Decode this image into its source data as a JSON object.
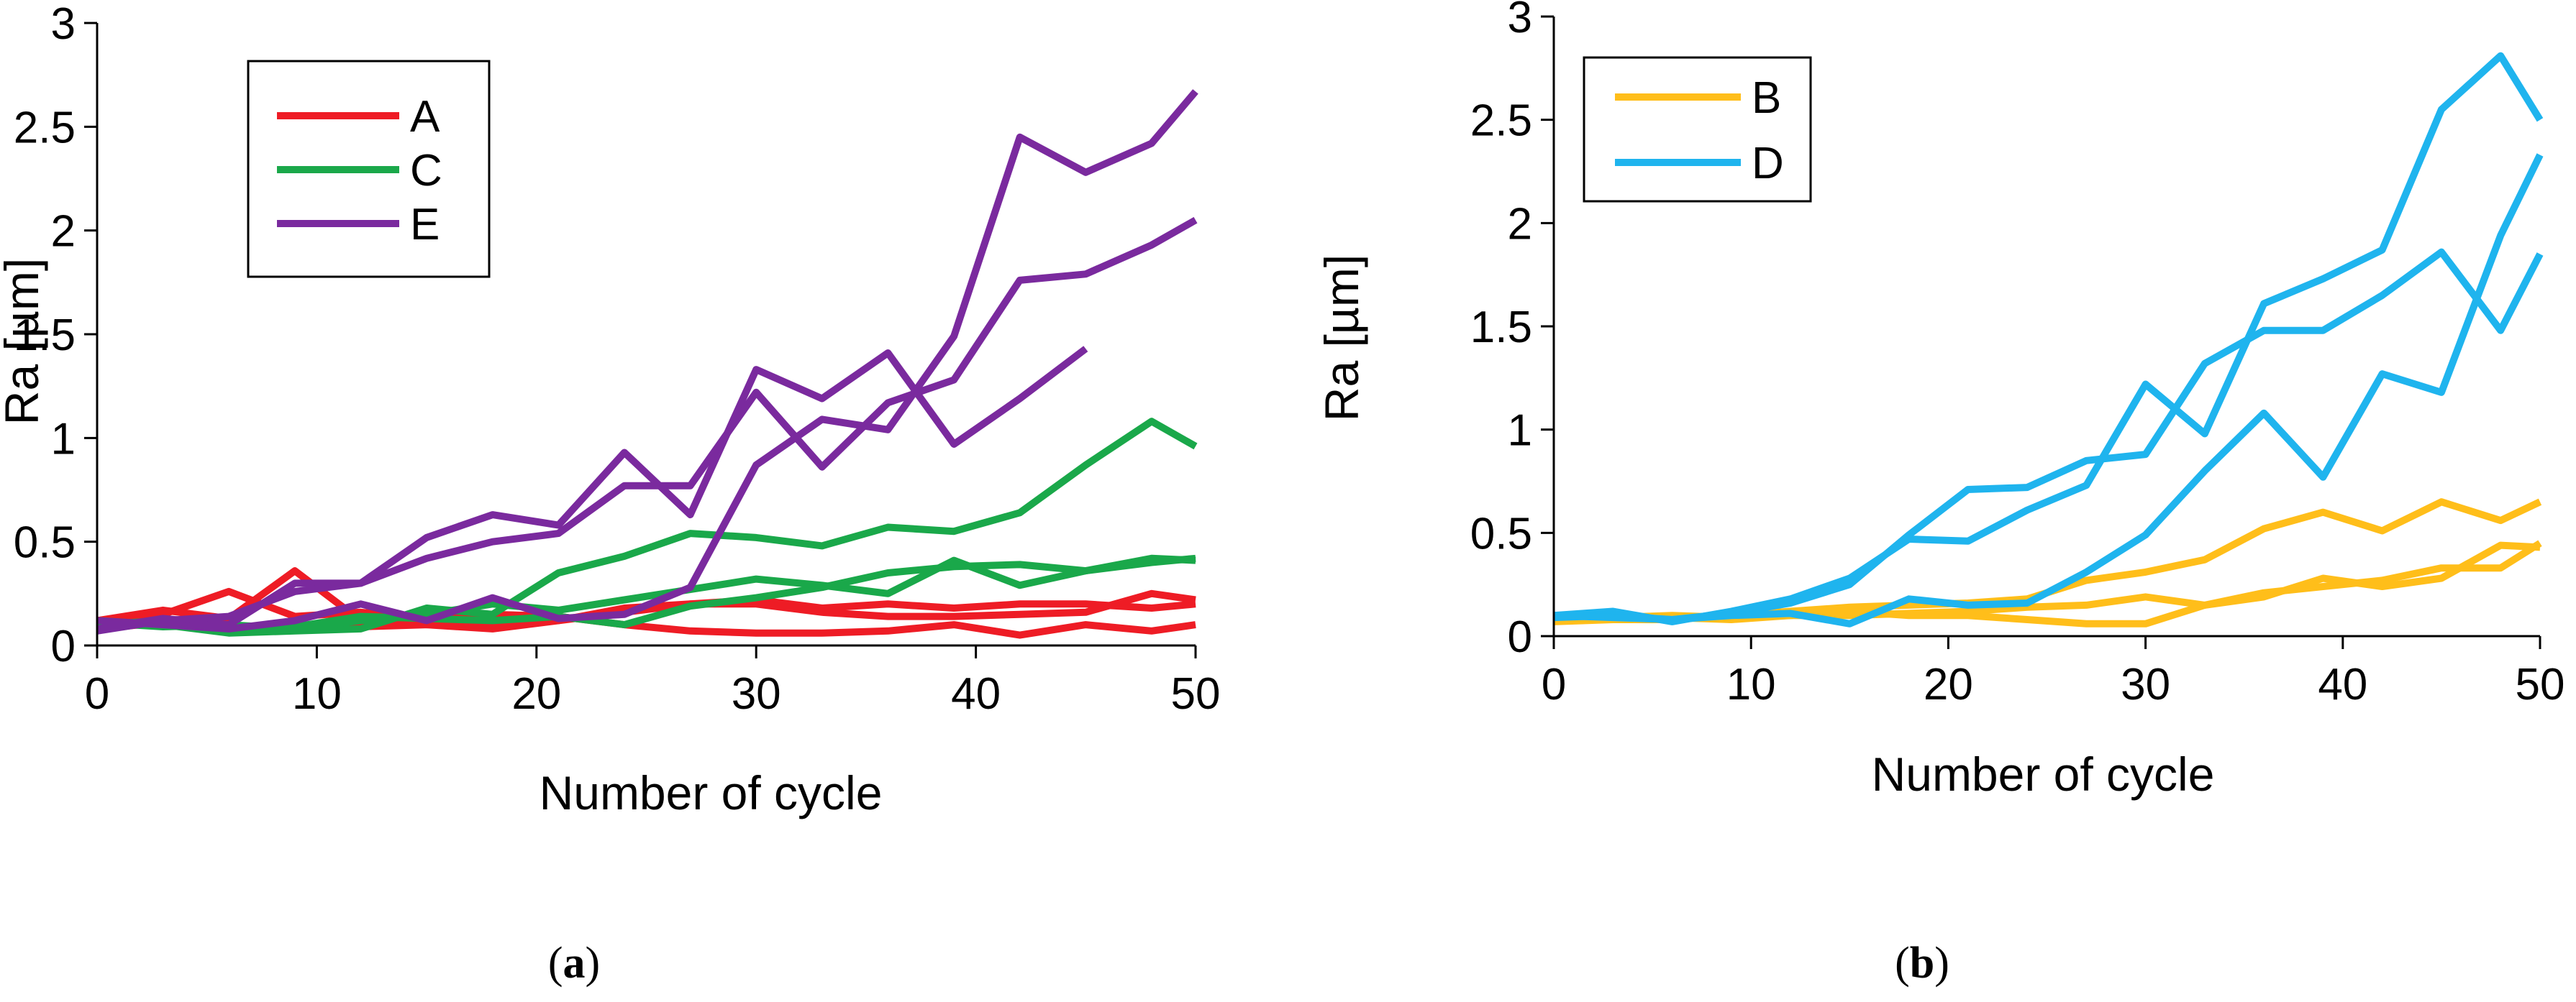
{
  "chart_data": [
    {
      "type": "line",
      "panel": "a",
      "caption_open": "(",
      "caption_letter": "a",
      "caption_close": ")",
      "xlabel": "Number of cycle",
      "ylabel": "Ra [µm]",
      "xlim": [
        0,
        50
      ],
      "ylim": [
        0,
        3
      ],
      "xticks": [
        0,
        10,
        20,
        30,
        40,
        50
      ],
      "yticks": [
        0,
        0.5,
        1,
        1.5,
        2,
        2.5,
        3
      ],
      "ytick_labels": [
        "0",
        "0.5",
        "1",
        "1.5",
        "2",
        "2.5",
        "3"
      ],
      "legend": [
        "A",
        "C",
        "E"
      ],
      "legend_position": "top-left",
      "colors": {
        "A": "#ee1c25",
        "C": "#1aa84a",
        "E": "#7a2a9e"
      },
      "series": [
        {
          "name": "A",
          "x": [
            0,
            3,
            6,
            9,
            12,
            15,
            18,
            21,
            24,
            27,
            30,
            33,
            36,
            39,
            42,
            45,
            48,
            50
          ],
          "y": [
            0.12,
            0.17,
            0.13,
            0.36,
            0.12,
            0.1,
            0.08,
            0.12,
            0.18,
            0.2,
            0.22,
            0.18,
            0.2,
            0.18,
            0.2,
            0.2,
            0.18,
            0.2
          ]
        },
        {
          "name": "A",
          "x": [
            0,
            3,
            6,
            9,
            12,
            15,
            18,
            21,
            24,
            27,
            30,
            33,
            36,
            39,
            42,
            45,
            48,
            50
          ],
          "y": [
            0.1,
            0.15,
            0.26,
            0.14,
            0.16,
            0.13,
            0.15,
            0.14,
            0.1,
            0.07,
            0.06,
            0.06,
            0.07,
            0.1,
            0.05,
            0.1,
            0.07,
            0.1
          ]
        },
        {
          "name": "A",
          "x": [
            0,
            3,
            6,
            9,
            12,
            15,
            18,
            21,
            24,
            27,
            30,
            33,
            36,
            39,
            42,
            45,
            48,
            50
          ],
          "y": [
            0.08,
            0.11,
            0.09,
            0.1,
            0.09,
            0.1,
            0.11,
            0.12,
            0.16,
            0.2,
            0.2,
            0.16,
            0.14,
            0.14,
            0.15,
            0.16,
            0.25,
            0.22
          ]
        },
        {
          "name": "C",
          "x": [
            0,
            3,
            6,
            9,
            12,
            15,
            18,
            21,
            24,
            27,
            30,
            33,
            36,
            39,
            42,
            45,
            48,
            50
          ],
          "y": [
            0.12,
            0.1,
            0.06,
            0.07,
            0.08,
            0.18,
            0.15,
            0.35,
            0.43,
            0.54,
            0.52,
            0.48,
            0.57,
            0.55,
            0.64,
            0.87,
            1.08,
            0.96
          ]
        },
        {
          "name": "C",
          "x": [
            0,
            3,
            6,
            9,
            12,
            15,
            18,
            21,
            24,
            27,
            30,
            33,
            36,
            39,
            42,
            45,
            48,
            50
          ],
          "y": [
            0.1,
            0.12,
            0.08,
            0.09,
            0.14,
            0.13,
            0.12,
            0.14,
            0.1,
            0.19,
            0.23,
            0.28,
            0.35,
            0.38,
            0.39,
            0.36,
            0.4,
            0.42
          ]
        },
        {
          "name": "C",
          "x": [
            0,
            3,
            6,
            9,
            12,
            15,
            18,
            21,
            24,
            27,
            30,
            33,
            36,
            39,
            42,
            45,
            48,
            50
          ],
          "y": [
            0.11,
            0.09,
            0.1,
            0.08,
            0.12,
            0.15,
            0.2,
            0.17,
            0.22,
            0.27,
            0.32,
            0.29,
            0.25,
            0.41,
            0.29,
            0.36,
            0.42,
            0.41
          ]
        },
        {
          "name": "E",
          "x": [
            0,
            3,
            6,
            9,
            12,
            15,
            18,
            21,
            24,
            27,
            30,
            33,
            36,
            39,
            42,
            45,
            48,
            50
          ],
          "y": [
            0.08,
            0.13,
            0.1,
            0.3,
            0.3,
            0.52,
            0.63,
            0.58,
            0.93,
            0.63,
            1.33,
            1.19,
            1.41,
            0.97,
            1.19,
            1.43,
            null,
            null
          ]
        },
        {
          "name": "E",
          "x": [
            0,
            3,
            6,
            9,
            12,
            15,
            18,
            21,
            24,
            27,
            30,
            33,
            36,
            39,
            42,
            45,
            48,
            50
          ],
          "y": [
            0.07,
            0.12,
            0.14,
            0.26,
            0.3,
            0.42,
            0.5,
            0.54,
            0.77,
            0.77,
            1.22,
            0.86,
            1.17,
            1.28,
            1.76,
            1.79,
            1.93,
            2.05
          ]
        },
        {
          "name": "E",
          "x": [
            0,
            3,
            6,
            9,
            12,
            15,
            18,
            21,
            24,
            27,
            30,
            33,
            36,
            39,
            42,
            45,
            48,
            50
          ],
          "y": [
            0.12,
            0.1,
            0.08,
            0.12,
            0.2,
            0.12,
            0.23,
            0.13,
            0.15,
            0.28,
            0.87,
            1.09,
            1.04,
            1.49,
            2.45,
            2.28,
            2.42,
            2.67
          ]
        }
      ]
    },
    {
      "type": "line",
      "panel": "b",
      "caption_open": "(",
      "caption_letter": "b",
      "caption_close": ")",
      "xlabel": "Number of cycle",
      "ylabel": "Ra [µm]",
      "xlim": [
        0,
        50
      ],
      "ylim": [
        0,
        3
      ],
      "xticks": [
        0,
        10,
        20,
        30,
        40,
        50
      ],
      "yticks": [
        0,
        0.5,
        1,
        1.5,
        2,
        2.5,
        3
      ],
      "ytick_labels": [
        "0",
        "0.5",
        "1",
        "1.5",
        "2",
        "2.5",
        "3"
      ],
      "legend": [
        "B",
        "D"
      ],
      "legend_position": "top-left",
      "colors": {
        "B": "#ffbe1a",
        "D": "#1fb4ee"
      },
      "series": [
        {
          "name": "B",
          "x": [
            0,
            3,
            6,
            9,
            12,
            15,
            18,
            21,
            24,
            27,
            30,
            33,
            36,
            39,
            42,
            45,
            48,
            50
          ],
          "y": [
            0.1,
            0.08,
            0.08,
            0.1,
            0.12,
            0.14,
            0.15,
            0.16,
            0.18,
            0.27,
            0.31,
            0.37,
            0.52,
            0.6,
            0.51,
            0.65,
            0.56,
            0.65
          ]
        },
        {
          "name": "B",
          "x": [
            0,
            3,
            6,
            9,
            12,
            15,
            18,
            21,
            24,
            27,
            30,
            33,
            36,
            39,
            42,
            45,
            48,
            50
          ],
          "y": [
            0.08,
            0.09,
            0.1,
            0.09,
            0.1,
            0.1,
            0.11,
            0.12,
            0.14,
            0.15,
            0.19,
            0.15,
            0.21,
            0.24,
            0.27,
            0.33,
            0.33,
            0.45
          ]
        },
        {
          "name": "B",
          "x": [
            0,
            3,
            6,
            9,
            12,
            15,
            18,
            21,
            24,
            27,
            30,
            33,
            36,
            39,
            42,
            45,
            48,
            50
          ],
          "y": [
            0.07,
            0.08,
            0.09,
            0.08,
            0.1,
            0.12,
            0.1,
            0.1,
            0.08,
            0.06,
            0.06,
            0.15,
            0.19,
            0.28,
            0.24,
            0.28,
            0.44,
            0.43
          ]
        },
        {
          "name": "D",
          "x": [
            0,
            3,
            6,
            9,
            12,
            15,
            18,
            21,
            24,
            27,
            30,
            33,
            36,
            39,
            42,
            45,
            48,
            50
          ],
          "y": [
            0.1,
            0.12,
            0.07,
            0.12,
            0.18,
            0.28,
            0.47,
            0.46,
            0.61,
            0.73,
            1.22,
            0.98,
            1.61,
            1.73,
            1.87,
            2.55,
            2.81,
            2.5
          ]
        },
        {
          "name": "D",
          "x": [
            0,
            3,
            6,
            9,
            12,
            15,
            18,
            21,
            24,
            27,
            30,
            33,
            36,
            39,
            42,
            45,
            48,
            50
          ],
          "y": [
            0.09,
            0.1,
            0.08,
            0.11,
            0.16,
            0.25,
            0.49,
            0.71,
            0.72,
            0.85,
            0.88,
            1.32,
            1.48,
            1.48,
            1.65,
            1.86,
            1.48,
            1.85
          ]
        },
        {
          "name": "D",
          "x": [
            0,
            3,
            6,
            9,
            12,
            15,
            18,
            21,
            24,
            27,
            30,
            33,
            36,
            39,
            42,
            45,
            48,
            50
          ],
          "y": [
            0.1,
            0.09,
            0.08,
            0.1,
            0.11,
            0.06,
            0.18,
            0.15,
            0.16,
            0.31,
            0.49,
            0.8,
            1.08,
            0.77,
            1.27,
            1.18,
            1.94,
            2.33
          ]
        }
      ]
    }
  ]
}
